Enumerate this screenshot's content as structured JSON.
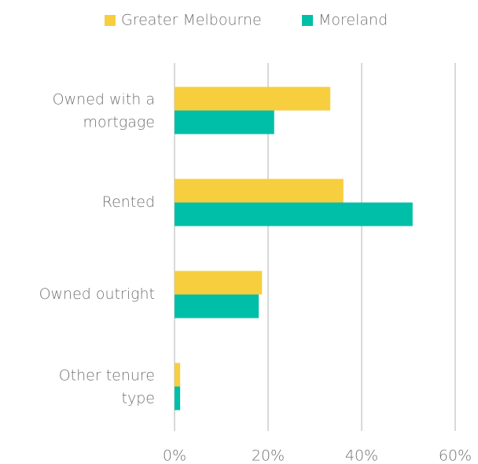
{
  "chart_data": {
    "type": "hbar",
    "categories": [
      "Owned with a mortgage",
      "Rented",
      "Owned outright",
      "Other tenure type"
    ],
    "series": [
      {
        "name": "Greater Melbourne",
        "color": "#f7ce3e",
        "values": [
          33.3,
          36.1,
          18.7,
          1.2
        ]
      },
      {
        "name": "Moreland",
        "color": "#00bfa9",
        "values": [
          21.3,
          50.9,
          18.0,
          1.2
        ]
      }
    ],
    "xlim": [
      0,
      60
    ],
    "xticks": [
      {
        "value": 0,
        "label": "0%"
      },
      {
        "value": 20,
        "label": "20%"
      },
      {
        "value": 40,
        "label": "40%"
      },
      {
        "value": 60,
        "label": "60%"
      }
    ],
    "grid": true,
    "legend": "top"
  }
}
